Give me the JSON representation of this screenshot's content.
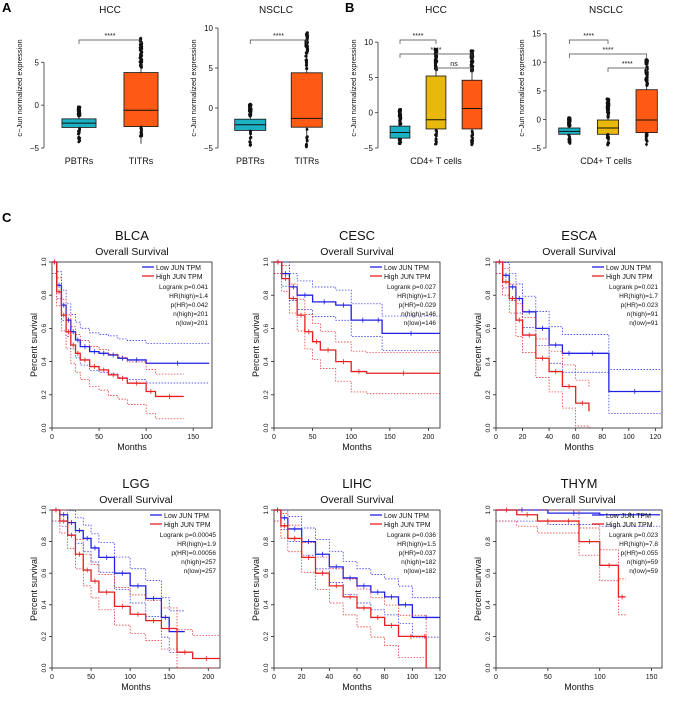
{
  "panel_labels": {
    "a": "A",
    "b": "B",
    "c": "C"
  },
  "colors": {
    "teal": "#1cb2c4",
    "orange": "#ff5a14",
    "gold": "#e8b90c",
    "low": "#2020e6",
    "high": "#e62020"
  },
  "chart_data": [
    {
      "id": "hcc_a",
      "type": "boxplot",
      "title": "HCC",
      "ylabel": "c−Jun normalized expression",
      "ylim": [
        -5,
        9
      ],
      "yticks": [
        -5,
        0,
        5
      ],
      "ytick_labels": [
        "−5",
        "0",
        "5"
      ],
      "categories": [
        "PBTRs",
        "TITRs"
      ],
      "boxes": [
        {
          "name": "PBTRs",
          "color": "#1cb2c4",
          "whisker_low": -4.3,
          "q1": -2.6,
          "median": -2.1,
          "q3": -1.6,
          "whisker_high": -0.2
        },
        {
          "name": "TITRs",
          "color": "#ff5a14",
          "whisker_low": -4.5,
          "q1": -2.5,
          "median": -0.6,
          "q3": 3.8,
          "whisker_high": 8.0
        }
      ],
      "significance": [
        {
          "from": 0,
          "to": 1,
          "label": "****"
        }
      ]
    },
    {
      "id": "nsclc_a",
      "type": "boxplot",
      "title": "NSCLC",
      "ylabel": "c−Jun normalized expression",
      "ylim": [
        -5,
        10
      ],
      "yticks": [
        -5,
        0,
        5,
        10
      ],
      "ytick_labels": [
        "−5",
        "0",
        "5",
        "10"
      ],
      "categories": [
        "PBTRs",
        "TITRs"
      ],
      "boxes": [
        {
          "name": "PBTRs",
          "color": "#1cb2c4",
          "whisker_low": -4.9,
          "q1": -2.8,
          "median": -2.1,
          "q3": -1.4,
          "whisker_high": 0.5
        },
        {
          "name": "TITRs",
          "color": "#ff5a14",
          "whisker_low": -4.9,
          "q1": -2.4,
          "median": -1.3,
          "q3": 4.4,
          "whisker_high": 9.5
        }
      ],
      "significance": [
        {
          "from": 0,
          "to": 1,
          "label": "****"
        }
      ]
    },
    {
      "id": "hcc_b",
      "type": "boxplot",
      "title": "HCC",
      "ylabel": "c−Jun normalized expression",
      "ylim": [
        -5,
        12
      ],
      "yticks": [
        -5,
        0,
        5,
        10
      ],
      "ytick_labels": [
        "−5",
        "0",
        "5",
        "10"
      ],
      "xlabel": "CD4+ T cells",
      "boxes": [
        {
          "name": "",
          "color": "#1cb2c4",
          "whisker_low": -4.4,
          "q1": -3.6,
          "median": -2.8,
          "q3": -1.9,
          "whisker_high": 0.5
        },
        {
          "name": "",
          "color": "#e8b90c",
          "whisker_low": -4.6,
          "q1": -2.3,
          "median": -1.0,
          "q3": 5.2,
          "whisker_high": 9.0
        },
        {
          "name": "",
          "color": "#ff5a14",
          "whisker_low": -4.6,
          "q1": -2.3,
          "median": 0.6,
          "q3": 4.6,
          "whisker_high": 8.8
        }
      ],
      "significance": [
        {
          "from": 0,
          "to": 1,
          "label": "****"
        },
        {
          "from": 0,
          "to": 2,
          "label": "****"
        },
        {
          "from": 1,
          "to": 2,
          "label": "ns"
        }
      ]
    },
    {
      "id": "nsclc_b",
      "type": "boxplot",
      "title": "NSCLC",
      "ylabel": "c−Jun normalized expression",
      "ylim": [
        -5,
        16
      ],
      "yticks": [
        -5,
        0,
        5,
        10,
        15
      ],
      "ytick_labels": [
        "−5",
        "0",
        "5",
        "10",
        "15"
      ],
      "xlabel": "CD4+ T cells",
      "boxes": [
        {
          "name": "",
          "color": "#1cb2c4",
          "whisker_low": -4.3,
          "q1": -2.6,
          "median": -2.1,
          "q3": -1.5,
          "whisker_high": 0.3
        },
        {
          "name": "",
          "color": "#e8b90c",
          "whisker_low": -4.5,
          "q1": -2.6,
          "median": -1.5,
          "q3": -0.1,
          "whisker_high": 3.6
        },
        {
          "name": "",
          "color": "#ff5a14",
          "whisker_low": -4.7,
          "q1": -2.3,
          "median": -0.1,
          "q3": 5.2,
          "whisker_high": 10.5
        }
      ],
      "significance": [
        {
          "from": 0,
          "to": 1,
          "label": "****"
        },
        {
          "from": 0,
          "to": 2,
          "label": "****"
        },
        {
          "from": 1,
          "to": 2,
          "label": "****"
        }
      ]
    },
    {
      "id": "blca",
      "type": "line",
      "title": "BLCA",
      "subtitle": "Overall Survival",
      "xlabel": "Months",
      "ylabel": "Percent survival",
      "xlim": [
        0,
        170
      ],
      "xticks": [
        0,
        50,
        100,
        150
      ],
      "ylim": [
        0,
        1
      ],
      "yticks": [
        0,
        0.2,
        0.4,
        0.6,
        0.8,
        1.0
      ],
      "legend": [
        "Low JUN TPM",
        "High JUN TPM"
      ],
      "stats": [
        "Logrank p=0.041",
        "HR(high)=1.4",
        "p(HR)=0.042",
        "n(high)=201",
        "n(low)=201"
      ],
      "series": [
        {
          "name": "Low JUN TPM",
          "color": "#2020e6",
          "x": [
            0,
            5,
            10,
            15,
            20,
            25,
            30,
            40,
            50,
            60,
            70,
            80,
            100,
            167
          ],
          "y": [
            1.0,
            0.86,
            0.74,
            0.65,
            0.58,
            0.53,
            0.49,
            0.46,
            0.45,
            0.44,
            0.42,
            0.41,
            0.39,
            0.39
          ]
        },
        {
          "name": "High JUN TPM",
          "color": "#e62020",
          "x": [
            0,
            5,
            10,
            15,
            20,
            25,
            30,
            40,
            50,
            60,
            70,
            80,
            100,
            110,
            140
          ],
          "y": [
            1.0,
            0.82,
            0.68,
            0.58,
            0.5,
            0.45,
            0.41,
            0.37,
            0.35,
            0.32,
            0.3,
            0.27,
            0.22,
            0.19,
            0.19
          ]
        }
      ]
    },
    {
      "id": "cesc",
      "type": "line",
      "title": "CESC",
      "subtitle": "Overall Survival",
      "xlabel": "Months",
      "ylabel": "Percent survival",
      "xlim": [
        0,
        215
      ],
      "xticks": [
        0,
        50,
        100,
        150,
        200
      ],
      "ylim": [
        0,
        1
      ],
      "yticks": [
        0,
        0.2,
        0.4,
        0.6,
        0.8,
        1.0
      ],
      "legend": [
        "Low JUN TPM",
        "High JUN TPM"
      ],
      "stats": [
        "Logrank p=0.027",
        "HR(high)=1.7",
        "p(HR)=0.029",
        "n(high)=146",
        "n(low)=146"
      ],
      "series": [
        {
          "name": "Low JUN TPM",
          "color": "#2020e6",
          "x": [
            0,
            10,
            20,
            30,
            50,
            80,
            100,
            130,
            140,
            215
          ],
          "y": [
            1.0,
            0.93,
            0.85,
            0.8,
            0.76,
            0.74,
            0.65,
            0.65,
            0.57,
            0.57
          ]
        },
        {
          "name": "High JUN TPM",
          "color": "#e62020",
          "x": [
            0,
            10,
            20,
            30,
            40,
            50,
            60,
            80,
            100,
            120,
            215
          ],
          "y": [
            1.0,
            0.9,
            0.78,
            0.68,
            0.58,
            0.52,
            0.47,
            0.4,
            0.34,
            0.33,
            0.33
          ]
        }
      ]
    },
    {
      "id": "esca",
      "type": "line",
      "title": "ESCA",
      "subtitle": "Overall Survival",
      "xlabel": "Months",
      "ylabel": "Percent survival",
      "xlim": [
        0,
        125
      ],
      "xticks": [
        0,
        20,
        40,
        60,
        80,
        100,
        120
      ],
      "ylim": [
        0,
        1
      ],
      "yticks": [
        0,
        0.2,
        0.4,
        0.6,
        0.8,
        1.0
      ],
      "legend": [
        "Low JUN TPM",
        "High JUN TPM"
      ],
      "stats": [
        "Logrank p=0.021",
        "HR(high)=1.7",
        "p(HR)=0.023",
        "n(high)=91",
        "n(low)=91"
      ],
      "series": [
        {
          "name": "Low JUN TPM",
          "color": "#2020e6",
          "x": [
            0,
            5,
            10,
            15,
            20,
            30,
            40,
            50,
            60,
            85,
            124
          ],
          "y": [
            1.0,
            0.92,
            0.85,
            0.78,
            0.7,
            0.6,
            0.5,
            0.45,
            0.45,
            0.22,
            0.22
          ]
        },
        {
          "name": "High JUN TPM",
          "color": "#e62020",
          "x": [
            0,
            5,
            10,
            15,
            20,
            30,
            40,
            50,
            60,
            70
          ],
          "y": [
            1.0,
            0.88,
            0.78,
            0.65,
            0.56,
            0.42,
            0.34,
            0.25,
            0.15,
            0.1
          ]
        }
      ]
    },
    {
      "id": "lgg",
      "type": "line",
      "title": "LGG",
      "subtitle": "Overall Survival",
      "xlabel": "Months",
      "ylabel": "Percent survival",
      "xlim": [
        0,
        215
      ],
      "xticks": [
        0,
        50,
        100,
        150,
        200
      ],
      "ylim": [
        0,
        1
      ],
      "yticks": [
        0,
        0.2,
        0.4,
        0.6,
        0.8,
        1.0
      ],
      "legend": [
        "Low JUN TPM",
        "High JUN TPM"
      ],
      "stats": [
        "Logrank p=0.00045",
        "HR(high)=1.9",
        "p(HR)=0.00056",
        "n(high)=257",
        "n(low)=257"
      ],
      "series": [
        {
          "name": "Low JUN TPM",
          "color": "#2020e6",
          "x": [
            0,
            10,
            20,
            30,
            40,
            50,
            60,
            80,
            100,
            120,
            140,
            150,
            170
          ],
          "y": [
            1.0,
            0.97,
            0.92,
            0.87,
            0.82,
            0.76,
            0.7,
            0.6,
            0.52,
            0.44,
            0.32,
            0.23,
            0.23
          ]
        },
        {
          "name": "High JUN TPM",
          "color": "#e62020",
          "x": [
            0,
            10,
            20,
            30,
            40,
            50,
            60,
            80,
            100,
            120,
            140,
            160,
            180,
            215
          ],
          "y": [
            1.0,
            0.93,
            0.84,
            0.72,
            0.62,
            0.55,
            0.48,
            0.39,
            0.34,
            0.3,
            0.25,
            0.1,
            0.06,
            0.06
          ]
        }
      ]
    },
    {
      "id": "lihc",
      "type": "line",
      "title": "LIHC",
      "subtitle": "Overall Survival",
      "xlabel": "Months",
      "ylabel": "Percent survival",
      "xlim": [
        0,
        120
      ],
      "xticks": [
        0,
        20,
        40,
        60,
        80,
        100,
        120
      ],
      "ylim": [
        0,
        1
      ],
      "yticks": [
        0,
        0.2,
        0.4,
        0.6,
        0.8,
        1.0
      ],
      "legend": [
        "Low JUN TPM",
        "High JUN TPM"
      ],
      "stats": [
        "Logrank p=0.036",
        "HR(high)=1.5",
        "p(HR)=0.037",
        "n(high)=182",
        "n(low)=182"
      ],
      "series": [
        {
          "name": "Low JUN TPM",
          "color": "#2020e6",
          "x": [
            0,
            5,
            10,
            20,
            30,
            40,
            50,
            60,
            70,
            80,
            90,
            100,
            120
          ],
          "y": [
            1.0,
            0.95,
            0.88,
            0.8,
            0.72,
            0.64,
            0.57,
            0.52,
            0.48,
            0.45,
            0.4,
            0.32,
            0.32
          ]
        },
        {
          "name": "High JUN TPM",
          "color": "#e62020",
          "x": [
            0,
            5,
            10,
            20,
            30,
            40,
            50,
            60,
            70,
            80,
            90,
            108,
            110
          ],
          "y": [
            1.0,
            0.9,
            0.82,
            0.7,
            0.6,
            0.52,
            0.45,
            0.38,
            0.32,
            0.27,
            0.2,
            0.2,
            0.0
          ]
        }
      ]
    },
    {
      "id": "thym",
      "type": "line",
      "title": "THYM",
      "subtitle": "Overall Survival",
      "xlabel": "Months",
      "ylabel": "Percent survival",
      "xlim": [
        0,
        160
      ],
      "xticks": [
        0,
        50,
        100,
        150
      ],
      "ylim": [
        0,
        1
      ],
      "yticks": [
        0,
        0.2,
        0.4,
        0.6,
        0.8,
        1.0
      ],
      "legend": [
        "Low JUN TPM",
        "High JUN TPM"
      ],
      "stats": [
        "Logrank p=0.023",
        "HR(high)=7.8",
        "p(HR)=0.055",
        "n(high)=59",
        "n(low)=59"
      ],
      "series": [
        {
          "name": "Low JUN TPM",
          "color": "#2020e6",
          "x": [
            0,
            50,
            100,
            158
          ],
          "y": [
            1.0,
            0.98,
            0.97,
            0.97
          ]
        },
        {
          "name": "High JUN TPM",
          "color": "#e62020",
          "x": [
            0,
            20,
            40,
            60,
            80,
            100,
            118,
            125
          ],
          "y": [
            1.0,
            0.97,
            0.93,
            0.93,
            0.8,
            0.65,
            0.45,
            0.45
          ]
        }
      ]
    }
  ]
}
